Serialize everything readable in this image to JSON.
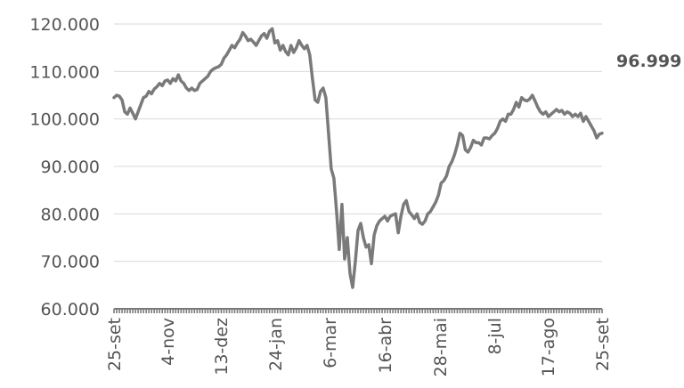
{
  "chart_data": {
    "type": "line",
    "title": "",
    "xlabel": "",
    "ylabel": "",
    "ylim": [
      60000,
      120000
    ],
    "yticks": [
      "60.000",
      "70.000",
      "80.000",
      "90.000",
      "100.000",
      "110.000",
      "120.000"
    ],
    "ytick_values": [
      60000,
      70000,
      80000,
      90000,
      100000,
      110000,
      120000
    ],
    "grid": "horizontal",
    "legend": "none",
    "x_tick_labels": [
      "25-set",
      "4-nov",
      "13-dez",
      "24-jan",
      "6-mar",
      "16-abr",
      "28-mai",
      "8-jul",
      "17-ago",
      "25-set"
    ],
    "end_label": "96.999",
    "colors": {
      "line": "#7a7a7a",
      "grid": "#d9d9d9",
      "axis": "#7a7a7a",
      "text": "#555555"
    },
    "series": [
      {
        "values": [
          104500,
          105000,
          104800,
          104000,
          101500,
          101000,
          102300,
          101200,
          100000,
          101500,
          103000,
          104500,
          104800,
          105800,
          105300,
          106300,
          106800,
          107500,
          107000,
          108000,
          108200,
          107500,
          108500,
          108000,
          109300,
          108000,
          107500,
          106500,
          106000,
          106500,
          106000,
          106200,
          107500,
          108000,
          108500,
          109000,
          110000,
          110500,
          110800,
          111000,
          111500,
          112800,
          113500,
          114500,
          115500,
          115000,
          116000,
          116800,
          118200,
          117500,
          116500,
          116800,
          116200,
          115500,
          116500,
          117500,
          118000,
          117000,
          118500,
          119000,
          116000,
          116500,
          114500,
          115500,
          114200,
          113500,
          115500,
          114000,
          115000,
          116500,
          115500,
          114800,
          115500,
          113500,
          108500,
          104000,
          103500,
          105800,
          106500,
          104500,
          97000,
          89500,
          87500,
          80500,
          72500,
          82000,
          70500,
          75000,
          67500,
          64500,
          70000,
          76500,
          78000,
          75000,
          73000,
          73500,
          69500,
          75500,
          77500,
          78500,
          79000,
          79500,
          78500,
          79500,
          79800,
          80000,
          76000,
          79500,
          82000,
          82800,
          80500,
          79800,
          79000,
          80000,
          78200,
          77800,
          78500,
          80000,
          80500,
          81500,
          82500,
          84000,
          86500,
          87000,
          88000,
          90000,
          91000,
          92500,
          94500,
          97000,
          96500,
          93500,
          93000,
          94000,
          95500,
          95000,
          95000,
          94500,
          96000,
          96000,
          95800,
          96500,
          97000,
          98000,
          99500,
          100000,
          99500,
          101000,
          101000,
          102000,
          103500,
          102500,
          104500,
          104000,
          103800,
          104200,
          105000,
          103800,
          102500,
          101500,
          101000,
          101500,
          100500,
          101000,
          101500,
          102000,
          101500,
          101800,
          101000,
          101500,
          101200,
          100500,
          101000,
          100500,
          101200,
          99500,
          100500,
          99500,
          98500,
          97500,
          96000,
          96800,
          96999
        ]
      }
    ]
  }
}
